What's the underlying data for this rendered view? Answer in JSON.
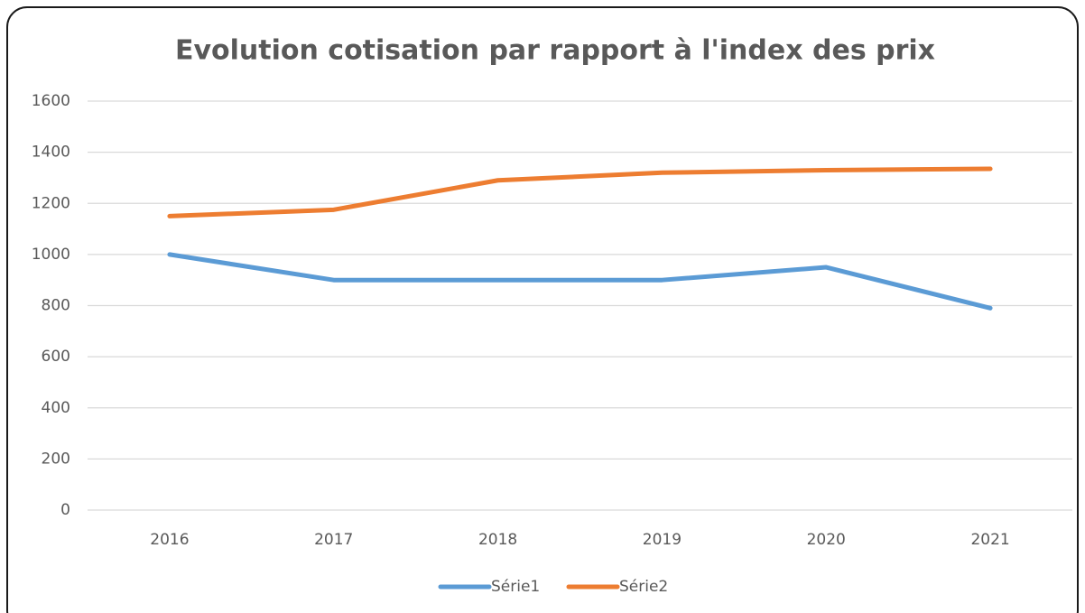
{
  "chart_data": {
    "type": "line",
    "title": "Evolution cotisation par rapport à l'index des prix",
    "categories": [
      "2016",
      "2017",
      "2018",
      "2019",
      "2020",
      "2021"
    ],
    "series": [
      {
        "name": "Série1",
        "color": "#5b9bd5",
        "values": [
          1000,
          900,
          900,
          900,
          950,
          790
        ]
      },
      {
        "name": "Série2",
        "color": "#ed7d31",
        "values": [
          1150,
          1175,
          1290,
          1320,
          1330,
          1335
        ]
      }
    ],
    "ylim": [
      0,
      1600
    ],
    "yticks": [
      0,
      200,
      400,
      600,
      800,
      1000,
      1200,
      1400,
      1600
    ],
    "grid": true,
    "legend": "bottom"
  }
}
